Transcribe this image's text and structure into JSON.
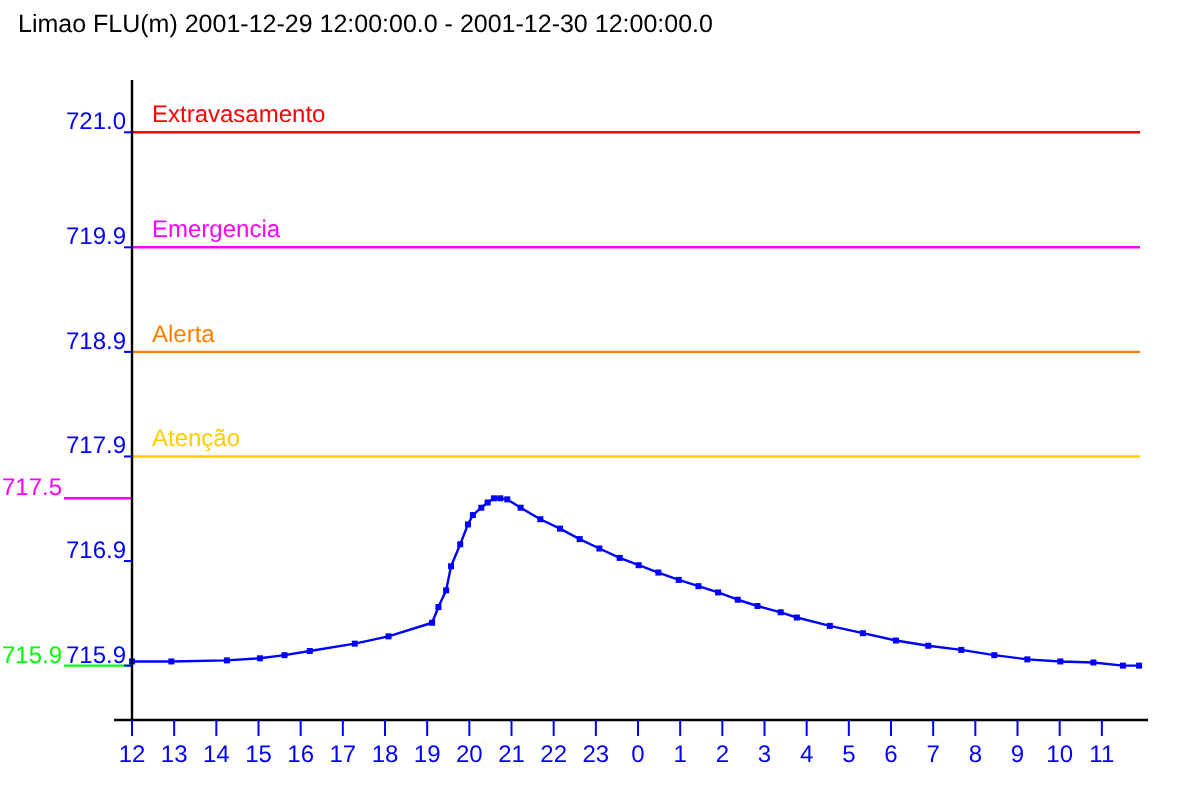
{
  "chart_data": {
    "type": "line",
    "title": "Limao FLU(m) 2001-12-29 12:00:00.0 - 2001-12-30 12:00:00.0",
    "x": [
      "2001-12-29T12:00",
      "2001-12-29T12:56",
      "2001-12-29T14:15",
      "2001-12-29T15:02",
      "2001-12-29T15:37",
      "2001-12-29T16:13",
      "2001-12-29T17:17",
      "2001-12-29T18:05",
      "2001-12-29T19:07",
      "2001-12-29T19:16",
      "2001-12-29T19:27",
      "2001-12-29T19:34",
      "2001-12-29T19:47",
      "2001-12-29T19:58",
      "2001-12-29T20:05",
      "2001-12-29T20:17",
      "2001-12-29T20:26",
      "2001-12-29T20:35",
      "2001-12-29T20:44",
      "2001-12-29T20:54",
      "2001-12-29T21:13",
      "2001-12-29T21:41",
      "2001-12-29T22:09",
      "2001-12-29T22:37",
      "2001-12-29T23:05",
      "2001-12-29T23:34",
      "2001-12-30T00:01",
      "2001-12-30T00:29",
      "2001-12-30T00:58",
      "2001-12-30T01:26",
      "2001-12-30T01:54",
      "2001-12-30T02:22",
      "2001-12-30T02:50",
      "2001-12-30T03:23",
      "2001-12-30T03:46",
      "2001-12-30T04:33",
      "2001-12-30T05:20",
      "2001-12-30T06:07",
      "2001-12-30T06:53",
      "2001-12-30T07:40",
      "2001-12-30T08:27",
      "2001-12-30T09:14",
      "2001-12-30T10:01",
      "2001-12-30T10:48",
      "2001-12-30T11:30",
      "2001-12-30T11:53"
    ],
    "series": [
      {
        "color": "#0000ff",
        "values": [
          715.94,
          715.94,
          715.95,
          715.97,
          716.0,
          716.04,
          716.11,
          716.18,
          716.31,
          716.46,
          716.62,
          716.85,
          717.06,
          717.25,
          717.34,
          717.41,
          717.46,
          717.5,
          717.5,
          717.49,
          717.41,
          717.3,
          717.21,
          717.11,
          717.02,
          716.93,
          716.86,
          716.79,
          716.72,
          716.66,
          716.6,
          716.53,
          716.47,
          716.41,
          716.36,
          716.28,
          716.21,
          716.14,
          716.09,
          716.05,
          716.0,
          715.96,
          715.94,
          715.93,
          715.9,
          715.9
        ]
      }
    ],
    "xlim": [
      "2001-12-29T12:00",
      "2001-12-30T12:00"
    ],
    "xticks": [
      {
        "value": "2001-12-29T12:00",
        "label": "12"
      },
      {
        "value": "2001-12-29T13:00",
        "label": "13"
      },
      {
        "value": "2001-12-29T14:00",
        "label": "14"
      },
      {
        "value": "2001-12-29T15:00",
        "label": "15"
      },
      {
        "value": "2001-12-29T16:00",
        "label": "16"
      },
      {
        "value": "2001-12-29T17:00",
        "label": "17"
      },
      {
        "value": "2001-12-29T18:00",
        "label": "18"
      },
      {
        "value": "2001-12-29T19:00",
        "label": "19"
      },
      {
        "value": "2001-12-29T20:00",
        "label": "20"
      },
      {
        "value": "2001-12-29T21:00",
        "label": "21"
      },
      {
        "value": "2001-12-29T22:00",
        "label": "22"
      },
      {
        "value": "2001-12-29T23:00",
        "label": "23"
      },
      {
        "value": "2001-12-30T00:00",
        "label": "0"
      },
      {
        "value": "2001-12-30T01:00",
        "label": "1"
      },
      {
        "value": "2001-12-30T02:00",
        "label": "2"
      },
      {
        "value": "2001-12-30T03:00",
        "label": "3"
      },
      {
        "value": "2001-12-30T04:00",
        "label": "4"
      },
      {
        "value": "2001-12-30T05:00",
        "label": "5"
      },
      {
        "value": "2001-12-30T06:00",
        "label": "6"
      },
      {
        "value": "2001-12-30T07:00",
        "label": "7"
      },
      {
        "value": "2001-12-30T08:00",
        "label": "8"
      },
      {
        "value": "2001-12-30T09:00",
        "label": "9"
      },
      {
        "value": "2001-12-30T10:00",
        "label": "10"
      },
      {
        "value": "2001-12-30T11:00",
        "label": "11"
      }
    ],
    "ylim": [
      715.38,
      721.5
    ],
    "yticks": [
      715.9,
      716.9,
      717.9,
      718.9,
      719.9,
      {
        "value": 721.0,
        "label": "721.0"
      }
    ],
    "ref_lines": [
      {
        "axis": "y",
        "value": 721.0,
        "label": "Extravasamento",
        "color": "#ff0000"
      },
      {
        "axis": "y",
        "value": 719.9,
        "label": "Emergencia",
        "color": "#ff00ff"
      },
      {
        "axis": "y",
        "value": 718.9,
        "label": "Alerta",
        "color": "#ff8000"
      },
      {
        "axis": "y",
        "value": 717.9,
        "label": "Atenção",
        "color": "#ffcc00"
      },
      {
        "axis": "y",
        "value": 717.5,
        "label": "717.5",
        "color": "#ff00ff"
      },
      {
        "axis": "y",
        "value": 715.9,
        "label": "715.9",
        "color": "#00ff00"
      }
    ],
    "grid": false,
    "marker": "square",
    "line_style": "solid"
  }
}
